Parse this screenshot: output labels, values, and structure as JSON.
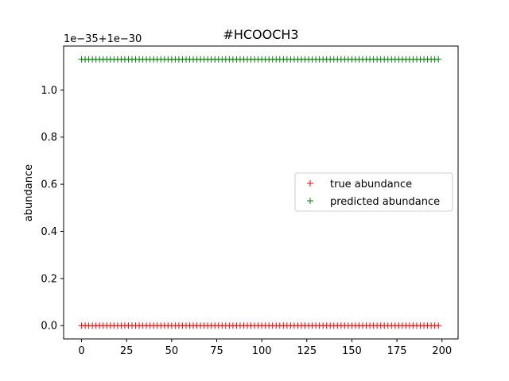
{
  "chart_data": {
    "type": "scatter",
    "title": "#HCOOCH3",
    "xlabel": "",
    "ylabel": "abundance",
    "offset_text": "1e−35+1e−30",
    "x_range": [
      0,
      199
    ],
    "x_step": 2,
    "xlim": [
      -9.95,
      208.95
    ],
    "ylim": [
      -0.0565,
      1.1865
    ],
    "xticks": [
      0,
      25,
      50,
      75,
      100,
      125,
      150,
      175,
      200
    ],
    "xtick_labels": [
      "0",
      "25",
      "50",
      "75",
      "100",
      "125",
      "150",
      "175",
      "200"
    ],
    "yticks": [
      0.0,
      0.2,
      0.4,
      0.6,
      0.8,
      1.0
    ],
    "ytick_labels": [
      "0.0",
      "0.2",
      "0.4",
      "0.6",
      "0.8",
      "1.0"
    ],
    "grid": false,
    "legend_position": "center-right",
    "marker": "+",
    "series": [
      {
        "name": "true abundance",
        "color": "#ff0000",
        "y": 0.0
      },
      {
        "name": "predicted abundance",
        "color": "#008000",
        "y": 1.13
      }
    ]
  }
}
